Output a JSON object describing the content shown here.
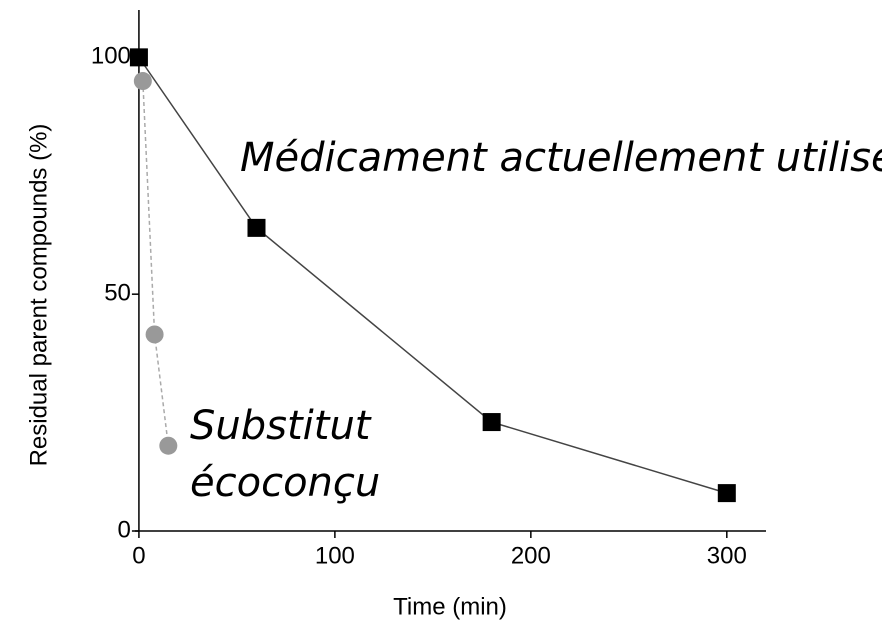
{
  "chart_data": {
    "type": "line",
    "xlabel": "Time (min)",
    "ylabel": "Residual parent compounds (%)",
    "xlim": [
      -2,
      320
    ],
    "ylim": [
      0,
      110
    ],
    "xticks": [
      0,
      100,
      200,
      300
    ],
    "yticks": [
      0,
      50,
      100
    ],
    "series": [
      {
        "color": "#000000",
        "line_color": "#444444",
        "marker": "square",
        "dashed": false,
        "x": [
          0,
          60,
          180,
          300
        ],
        "values": [
          100,
          64,
          23,
          8
        ]
      },
      {
        "color": "#999999",
        "line_color": "#aaaaaa",
        "marker": "circle",
        "dashed": true,
        "x": [
          2,
          8,
          15
        ],
        "values": [
          95,
          41.5,
          18
        ]
      }
    ],
    "annotations": [
      {
        "text": "Médicament actuellement utilisé"
      },
      {
        "text": "Substitut"
      },
      {
        "text": "écoconçu"
      }
    ]
  }
}
